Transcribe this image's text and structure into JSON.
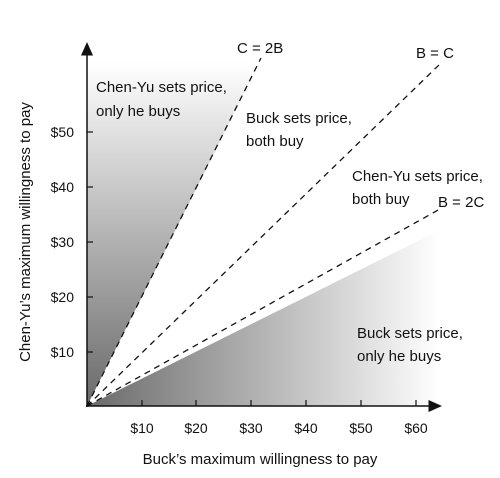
{
  "chart_data": {
    "type": "diagram",
    "xlabel": "Buck’s maximum willingness to pay",
    "ylabel": "Chen-Yu’s maximum willingness to pay",
    "x_ticks": [
      "$10",
      "$20",
      "$30",
      "$40",
      "$50",
      "$60"
    ],
    "y_ticks": [
      "$10",
      "$20",
      "$30",
      "$40",
      "$50"
    ],
    "lines": [
      {
        "label": "C = 2B",
        "slope": 2
      },
      {
        "label": "B = C",
        "slope": 1
      },
      {
        "label": "B = 2C",
        "slope": 0.5
      }
    ],
    "regions": [
      {
        "line1": "Chen-Yu sets price,",
        "line2": "only he buys",
        "shaded": true
      },
      {
        "line1": "Buck sets price,",
        "line2": "both buy",
        "shaded": false
      },
      {
        "line1": "Chen-Yu sets price,",
        "line2": "both buy",
        "shaded": false
      },
      {
        "line1": "Buck sets price,",
        "line2": "only he buys",
        "shaded": true
      }
    ],
    "colors": {
      "shade_dark": "#6a6a6a",
      "shade_light": "#ffffff",
      "ink": "#111111"
    }
  }
}
